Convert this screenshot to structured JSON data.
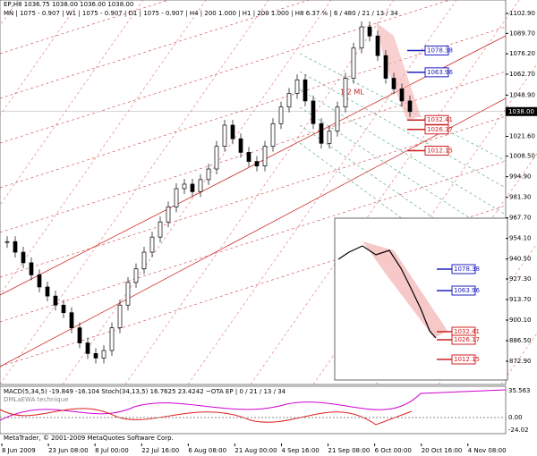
{
  "header": {
    "symbol_line": "EP,H8  1036.75  1038.00  1036.00  1038.00",
    "info_line": "MN | 1075  - 0.907 | W1 | 1075  - 0.907 | D1 | 1075  - 0.907 | H4 | 200  1.000 | H1 | 200  1.000 | H8  6.37 % | 6 / 480 / 21 / 13 / 34"
  },
  "chart": {
    "ylim": [
      872.9,
      1102.9
    ],
    "price_axis": [
      {
        "value": 1102.9,
        "label": "1102.90"
      },
      {
        "value": 1089.7,
        "label": "1089.70"
      },
      {
        "value": 1076.2,
        "label": "1076.20"
      },
      {
        "value": 1062.7,
        "label": "1062.70"
      },
      {
        "value": 1048.9,
        "label": "1048.90"
      },
      {
        "value": 1021.6,
        "label": "1021.60"
      },
      {
        "value": 1008.5,
        "label": "1008.50"
      },
      {
        "value": 994.9,
        "label": "994.90"
      },
      {
        "value": 981.3,
        "label": "981.30"
      },
      {
        "value": 967.7,
        "label": "967.70"
      },
      {
        "value": 954.1,
        "label": "954.10"
      },
      {
        "value": 940.5,
        "label": "940.50"
      },
      {
        "value": 927.3,
        "label": "927.30"
      },
      {
        "value": 913.7,
        "label": "913.70"
      },
      {
        "value": 900.1,
        "label": "900.10"
      },
      {
        "value": 886.5,
        "label": "886.50"
      },
      {
        "value": 872.9,
        "label": "872.90"
      }
    ],
    "current_price": {
      "value": 1038,
      "label": "1038.00"
    },
    "closes": [
      952,
      945,
      938,
      930,
      922,
      916,
      910,
      905,
      895,
      885,
      878,
      875,
      880,
      895,
      910,
      925,
      934,
      945,
      955,
      965,
      975,
      987,
      990,
      985,
      993,
      1000,
      1015,
      1029,
      1020,
      1011,
      1005,
      1002,
      1015,
      1030,
      1041,
      1050,
      1059,
      1045,
      1030,
      1017,
      1025,
      1041,
      1060,
      1080,
      1094,
      1088,
      1075,
      1060,
      1053,
      1045,
      1038
    ],
    "time_axis": [
      "8 Jun 2009",
      "23 Jun 08:00",
      "8 Jul 00:00",
      "22 Jul 16:00",
      "6 Aug 08:00",
      "21 Aug 00:00",
      "4 Sep 16:00",
      "21 Sep 08:00",
      "6 Oct 00:00",
      "20 Oct 16:00",
      "4 Nov 08:00"
    ],
    "tags": [
      {
        "value": 1078.38,
        "label": "1078.38",
        "color": "#2020c0"
      },
      {
        "value": 1063.96,
        "label": "1063.96",
        "color": "#2020c0"
      },
      {
        "value": 1032.41,
        "label": "1032.41",
        "color": "#d02020"
      },
      {
        "value": 1026.17,
        "label": "1026.17",
        "color": "#d02020"
      },
      {
        "value": 1012.15,
        "label": "1012.15",
        "color": "#d02020"
      }
    ],
    "annotation": "1/2 ML"
  },
  "inset": {
    "tags": [
      "1078.38",
      "1063.96",
      "1032.41",
      "1026.17",
      "1012.15"
    ]
  },
  "indicator": {
    "title": "MACD(5,34,5) -19.849 -16.104  Stoch(34,13,5) 16.7625 23.4242  ~OTA EP | 0 / 21 / 13 / 34",
    "subtitle": "DMLaEWA technique",
    "axis": [
      "35.563",
      "0.00",
      "-24.02"
    ]
  },
  "footer": "MetaTrader, © 2001-2009 MetaQuotes Software Corp."
}
